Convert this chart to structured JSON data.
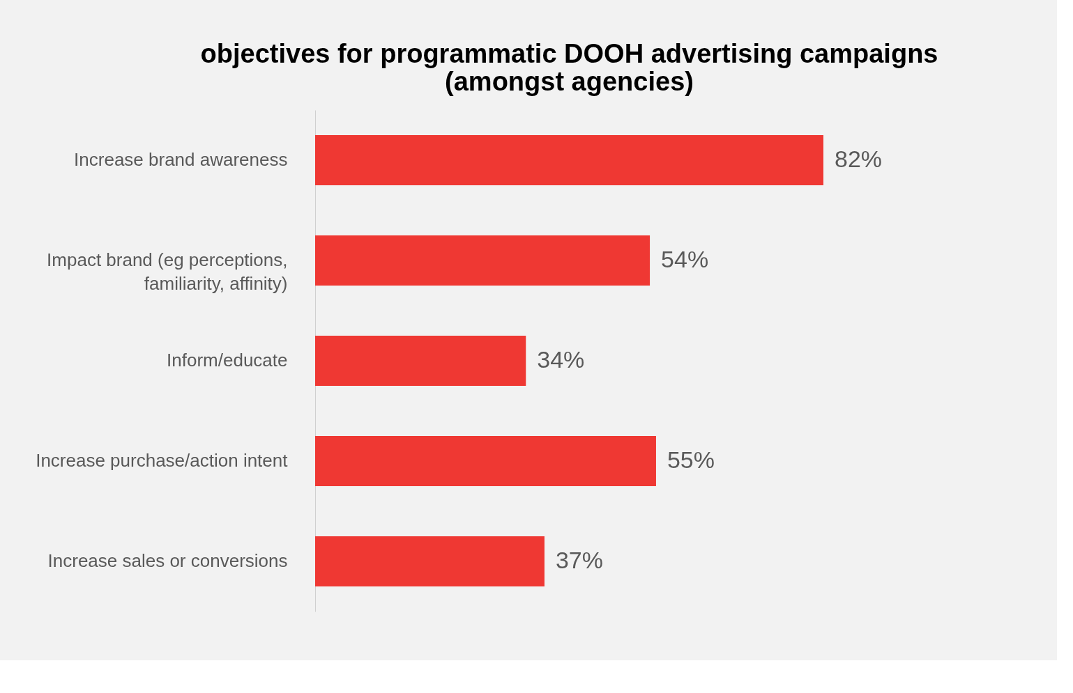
{
  "chart_data": {
    "type": "bar",
    "orientation": "horizontal",
    "title": "objectives for programmatic DOOH advertising campaigns (amongst agencies)",
    "categories": [
      "Increase brand awareness",
      "Impact brand (eg perceptions, familiarity, affinity)",
      "Inform/educate",
      "Increase purchase/action intent",
      "Increase sales or conversions"
    ],
    "values": [
      82,
      54,
      34,
      55,
      37
    ],
    "value_labels": [
      "82%",
      "54%",
      "34%",
      "55%",
      "37%"
    ],
    "color": "#ef3833",
    "grid": false
  }
}
